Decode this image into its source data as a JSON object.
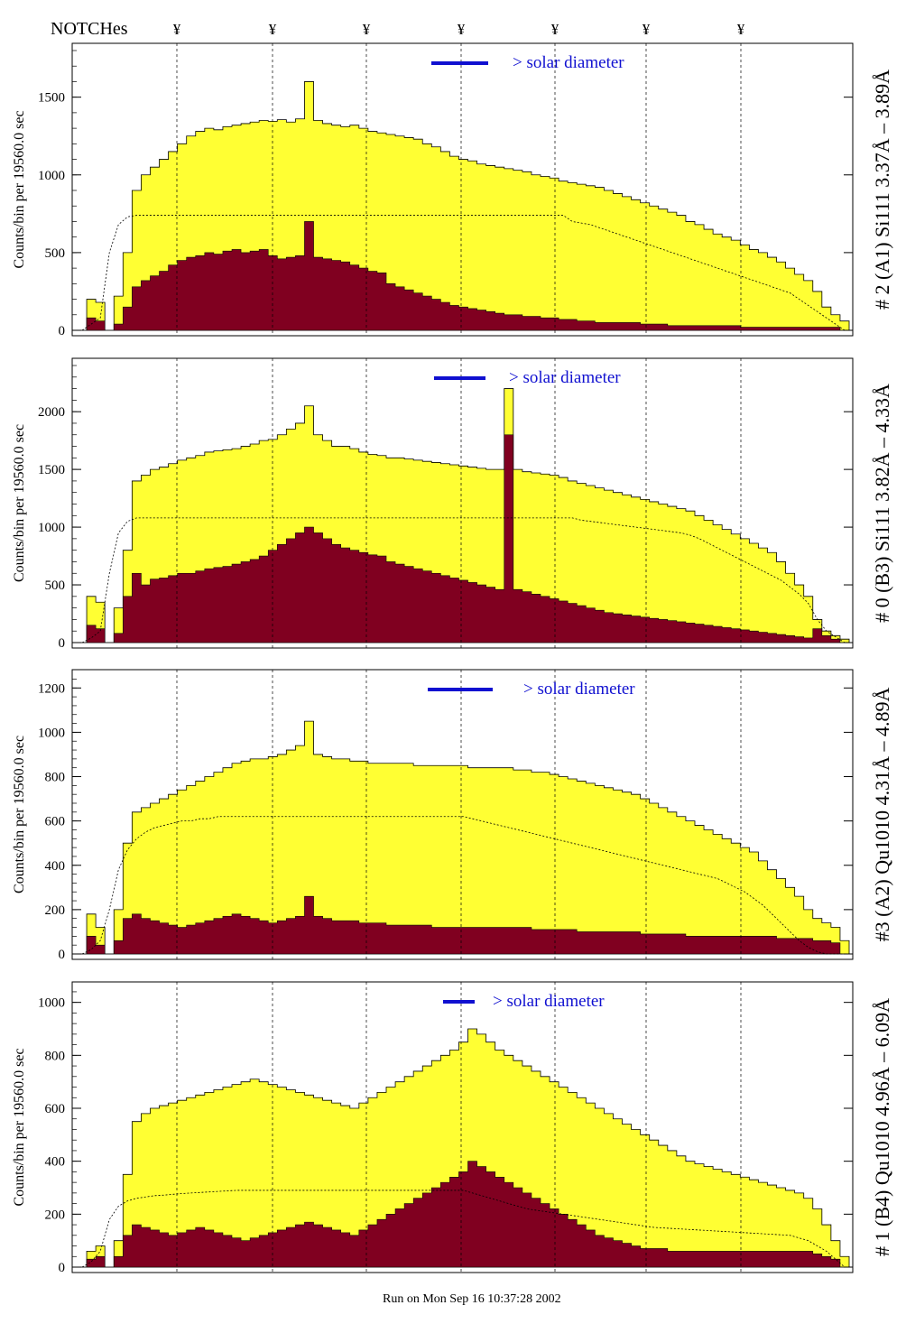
{
  "header": {
    "notches_label": "NOTCHes",
    "notch_symbol": "¥",
    "notch_count": 7
  },
  "footer": {
    "run_text": "Run on Mon Sep 16 10:37:28 2002"
  },
  "colors": {
    "fill": "#ffff33",
    "dark": "#800020",
    "accent": "#1010d0",
    "frame": "#000000"
  },
  "chart_data": [
    {
      "type": "histogram",
      "side_label": "# 2 (A1) Si111  3.37Å – 3.89Å",
      "ylabel": "Counts/bin per  19560.0 sec",
      "solar_label": "> solar diameter",
      "ylim": [
        0,
        1800
      ],
      "yticks": [
        0,
        500,
        1000,
        1500
      ],
      "bins": 85,
      "total": [
        0,
        200,
        180,
        0,
        220,
        500,
        900,
        1000,
        1050,
        1100,
        1150,
        1200,
        1250,
        1280,
        1300,
        1290,
        1310,
        1320,
        1330,
        1340,
        1350,
        1345,
        1355,
        1340,
        1360,
        1600,
        1350,
        1330,
        1320,
        1310,
        1320,
        1300,
        1280,
        1270,
        1260,
        1250,
        1240,
        1230,
        1200,
        1180,
        1150,
        1120,
        1100,
        1090,
        1070,
        1060,
        1050,
        1040,
        1030,
        1020,
        1000,
        990,
        980,
        960,
        950,
        940,
        930,
        920,
        900,
        880,
        860,
        840,
        820,
        800,
        780,
        760,
        740,
        700,
        680,
        650,
        620,
        600,
        580,
        550,
        520,
        500,
        470,
        440,
        400,
        360,
        320,
        250,
        150,
        100,
        60
      ],
      "dark": [
        0,
        80,
        60,
        0,
        40,
        150,
        280,
        320,
        350,
        380,
        420,
        450,
        470,
        480,
        500,
        490,
        510,
        520,
        500,
        510,
        520,
        480,
        460,
        470,
        480,
        700,
        470,
        460,
        450,
        440,
        420,
        400,
        380,
        370,
        300,
        280,
        260,
        240,
        220,
        200,
        180,
        160,
        150,
        140,
        130,
        120,
        110,
        100,
        100,
        90,
        90,
        80,
        80,
        70,
        70,
        60,
        60,
        50,
        50,
        50,
        50,
        50,
        40,
        40,
        40,
        30,
        30,
        30,
        30,
        30,
        30,
        30,
        30,
        20,
        20,
        20,
        20,
        20,
        20,
        20,
        20,
        20,
        20,
        20,
        0
      ],
      "dashed": [
        0,
        40,
        80,
        500,
        680,
        730,
        740,
        740,
        740,
        740,
        740,
        740,
        740,
        740,
        740,
        740,
        740,
        740,
        740,
        740,
        740,
        740,
        740,
        740,
        740,
        740,
        740,
        740,
        740,
        740,
        740,
        740,
        740,
        740,
        740,
        740,
        740,
        740,
        740,
        740,
        740,
        740,
        740,
        740,
        740,
        740,
        740,
        740,
        740,
        740,
        740,
        740,
        740,
        740,
        700,
        690,
        680,
        660,
        640,
        620,
        600,
        580,
        560,
        540,
        520,
        500,
        480,
        460,
        440,
        420,
        400,
        380,
        360,
        340,
        320,
        300,
        280,
        260,
        240,
        200,
        160,
        120,
        80,
        40,
        0
      ]
    },
    {
      "type": "histogram",
      "side_label": "# 0 (B3) Si111  3.82Å – 4.33Å",
      "ylabel": "Counts/bin per  19560.0 sec",
      "solar_label": "> solar diameter",
      "ylim": [
        0,
        2400
      ],
      "yticks": [
        0,
        500,
        1000,
        1500,
        2000
      ],
      "bins": 85,
      "total": [
        0,
        400,
        350,
        0,
        300,
        800,
        1400,
        1450,
        1500,
        1520,
        1550,
        1580,
        1600,
        1620,
        1650,
        1660,
        1670,
        1680,
        1700,
        1720,
        1750,
        1760,
        1800,
        1850,
        1900,
        2050,
        1800,
        1750,
        1700,
        1700,
        1680,
        1650,
        1630,
        1620,
        1600,
        1600,
        1590,
        1580,
        1570,
        1560,
        1550,
        1540,
        1530,
        1520,
        1510,
        1500,
        1500,
        2200,
        1500,
        1480,
        1470,
        1460,
        1450,
        1430,
        1400,
        1380,
        1360,
        1340,
        1320,
        1300,
        1280,
        1260,
        1240,
        1220,
        1200,
        1180,
        1160,
        1140,
        1100,
        1060,
        1020,
        980,
        940,
        900,
        860,
        820,
        780,
        700,
        600,
        500,
        400,
        200,
        100,
        60,
        30
      ],
      "dark": [
        0,
        150,
        120,
        0,
        80,
        400,
        600,
        500,
        550,
        560,
        580,
        600,
        600,
        620,
        640,
        650,
        660,
        680,
        700,
        720,
        750,
        800,
        850,
        900,
        950,
        1000,
        950,
        900,
        850,
        820,
        800,
        780,
        760,
        750,
        700,
        680,
        660,
        640,
        620,
        600,
        580,
        560,
        540,
        520,
        500,
        480,
        460,
        1800,
        460,
        440,
        420,
        400,
        380,
        360,
        340,
        320,
        300,
        280,
        260,
        250,
        240,
        230,
        220,
        210,
        200,
        190,
        180,
        170,
        160,
        150,
        140,
        130,
        120,
        110,
        100,
        90,
        80,
        70,
        60,
        50,
        40,
        120,
        60,
        30,
        0
      ],
      "dashed": [
        0,
        40,
        100,
        600,
        950,
        1050,
        1080,
        1080,
        1080,
        1080,
        1080,
        1080,
        1080,
        1080,
        1080,
        1080,
        1080,
        1080,
        1080,
        1080,
        1080,
        1080,
        1080,
        1080,
        1080,
        1080,
        1080,
        1080,
        1080,
        1080,
        1080,
        1080,
        1080,
        1080,
        1080,
        1080,
        1080,
        1080,
        1080,
        1080,
        1080,
        1080,
        1080,
        1080,
        1080,
        1080,
        1080,
        1080,
        1080,
        1080,
        1080,
        1080,
        1080,
        1080,
        1080,
        1060,
        1050,
        1040,
        1030,
        1020,
        1010,
        1000,
        990,
        980,
        970,
        960,
        950,
        930,
        900,
        860,
        820,
        780,
        740,
        700,
        660,
        620,
        580,
        540,
        480,
        420,
        340,
        200,
        100,
        50,
        0
      ]
    },
    {
      "type": "histogram",
      "side_label": "#3 (A2) Qu1010  4.31Å – 4.89Å",
      "ylabel": "Counts/bin per  19560.0 sec",
      "solar_label": "> solar diameter",
      "ylim": [
        0,
        1250
      ],
      "yticks": [
        0,
        200,
        400,
        600,
        800,
        1000,
        1200
      ],
      "bins": 85,
      "total": [
        0,
        180,
        120,
        0,
        200,
        500,
        640,
        660,
        680,
        700,
        720,
        740,
        760,
        780,
        800,
        820,
        840,
        860,
        870,
        880,
        880,
        890,
        900,
        920,
        940,
        1050,
        900,
        890,
        880,
        880,
        870,
        870,
        860,
        860,
        860,
        860,
        860,
        850,
        850,
        850,
        850,
        850,
        850,
        840,
        840,
        840,
        840,
        840,
        830,
        830,
        820,
        820,
        810,
        800,
        790,
        780,
        770,
        760,
        750,
        740,
        730,
        720,
        700,
        680,
        660,
        640,
        620,
        600,
        580,
        560,
        540,
        520,
        500,
        480,
        460,
        420,
        380,
        340,
        300,
        260,
        200,
        160,
        140,
        120,
        60
      ],
      "dark": [
        0,
        80,
        40,
        0,
        60,
        160,
        180,
        160,
        150,
        140,
        130,
        120,
        130,
        140,
        150,
        160,
        170,
        180,
        170,
        160,
        150,
        140,
        150,
        160,
        170,
        260,
        170,
        160,
        150,
        150,
        150,
        140,
        140,
        140,
        130,
        130,
        130,
        130,
        130,
        120,
        120,
        120,
        120,
        120,
        120,
        120,
        120,
        120,
        120,
        120,
        110,
        110,
        110,
        110,
        110,
        100,
        100,
        100,
        100,
        100,
        100,
        100,
        90,
        90,
        90,
        90,
        90,
        80,
        80,
        80,
        80,
        80,
        80,
        80,
        80,
        80,
        80,
        70,
        70,
        70,
        70,
        60,
        60,
        50,
        0
      ],
      "dashed": [
        0,
        20,
        60,
        200,
        380,
        470,
        520,
        550,
        570,
        580,
        590,
        600,
        600,
        610,
        610,
        620,
        620,
        620,
        620,
        620,
        620,
        620,
        620,
        620,
        620,
        620,
        620,
        620,
        620,
        620,
        620,
        620,
        620,
        620,
        620,
        620,
        620,
        620,
        620,
        620,
        620,
        620,
        620,
        610,
        600,
        590,
        580,
        570,
        560,
        550,
        540,
        530,
        520,
        510,
        500,
        490,
        480,
        470,
        460,
        450,
        440,
        430,
        420,
        410,
        400,
        390,
        380,
        370,
        360,
        350,
        340,
        320,
        300,
        280,
        250,
        220,
        180,
        140,
        100,
        60,
        30,
        10,
        0,
        0,
        0
      ]
    },
    {
      "type": "histogram",
      "side_label": "# 1 (B4) Qu1010 4.96Å – 6.09Å",
      "ylabel": "Counts/bin per  19560.0 sec",
      "solar_label": "> solar diameter",
      "ylim": [
        0,
        1050
      ],
      "yticks": [
        0,
        200,
        400,
        600,
        800,
        1000
      ],
      "bins": 85,
      "total": [
        0,
        60,
        80,
        0,
        100,
        350,
        550,
        580,
        600,
        610,
        620,
        630,
        640,
        650,
        660,
        670,
        680,
        690,
        700,
        710,
        700,
        690,
        680,
        670,
        660,
        650,
        640,
        630,
        620,
        610,
        600,
        620,
        640,
        660,
        680,
        700,
        720,
        740,
        760,
        780,
        800,
        820,
        850,
        900,
        880,
        850,
        820,
        800,
        780,
        760,
        740,
        720,
        700,
        680,
        660,
        640,
        620,
        600,
        580,
        560,
        540,
        520,
        500,
        480,
        460,
        440,
        420,
        400,
        390,
        380,
        370,
        360,
        350,
        340,
        330,
        320,
        310,
        300,
        290,
        280,
        260,
        220,
        160,
        100,
        40
      ],
      "dark": [
        0,
        30,
        40,
        0,
        40,
        120,
        160,
        150,
        140,
        130,
        120,
        130,
        140,
        150,
        140,
        130,
        120,
        110,
        100,
        110,
        120,
        130,
        140,
        150,
        160,
        170,
        160,
        150,
        140,
        130,
        120,
        140,
        160,
        180,
        200,
        220,
        240,
        260,
        280,
        300,
        320,
        340,
        360,
        400,
        380,
        360,
        340,
        320,
        300,
        280,
        260,
        240,
        220,
        200,
        180,
        160,
        140,
        120,
        110,
        100,
        90,
        80,
        70,
        70,
        70,
        60,
        60,
        60,
        60,
        60,
        60,
        60,
        60,
        60,
        60,
        60,
        60,
        60,
        60,
        60,
        60,
        50,
        40,
        30,
        0
      ],
      "dashed": [
        0,
        20,
        60,
        180,
        230,
        250,
        260,
        265,
        270,
        272,
        275,
        278,
        280,
        282,
        284,
        286,
        288,
        290,
        290,
        290,
        290,
        290,
        290,
        290,
        290,
        290,
        290,
        290,
        290,
        290,
        290,
        290,
        290,
        290,
        290,
        290,
        290,
        290,
        290,
        290,
        290,
        290,
        290,
        280,
        270,
        260,
        250,
        240,
        230,
        220,
        215,
        210,
        205,
        200,
        195,
        190,
        185,
        180,
        175,
        170,
        165,
        160,
        155,
        150,
        148,
        146,
        144,
        142,
        140,
        138,
        136,
        134,
        132,
        130,
        128,
        126,
        124,
        122,
        120,
        110,
        100,
        80,
        60,
        30,
        0
      ]
    }
  ]
}
